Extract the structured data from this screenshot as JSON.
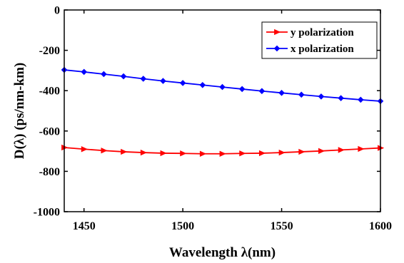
{
  "chart_data": {
    "type": "line",
    "xlabel": "Wavelength λ(nm)",
    "ylabel": "D(λ) (ps/nm-km)",
    "xlim": [
      1440,
      1600
    ],
    "ylim": [
      -1000,
      0
    ],
    "xticks": [
      "1450",
      "1500",
      "1550",
      "1600"
    ],
    "xtick_values": [
      1450,
      1500,
      1550,
      1600
    ],
    "yticks": [
      "0",
      "-200",
      "-400",
      "-600",
      "-800",
      "-1000"
    ],
    "ytick_values": [
      0,
      -200,
      -400,
      -600,
      -800,
      -1000
    ],
    "grid": false,
    "legend_position": "top-right",
    "x": [
      1440,
      1450,
      1460,
      1470,
      1480,
      1490,
      1500,
      1510,
      1520,
      1530,
      1540,
      1550,
      1560,
      1570,
      1580,
      1590,
      1600
    ],
    "series": [
      {
        "name": "y polarization",
        "color": "#ff0000",
        "marker": "triangle-right",
        "values": [
          -682,
          -690,
          -697,
          -703,
          -707,
          -710,
          -711,
          -713,
          -713,
          -711,
          -710,
          -707,
          -703,
          -699,
          -694,
          -689,
          -684
        ]
      },
      {
        "name": "x polarization",
        "color": "#0000ff",
        "marker": "diamond",
        "values": [
          -297,
          -307,
          -318,
          -329,
          -341,
          -352,
          -362,
          -372,
          -382,
          -392,
          -402,
          -411,
          -420,
          -429,
          -437,
          -445,
          -452
        ]
      }
    ]
  }
}
